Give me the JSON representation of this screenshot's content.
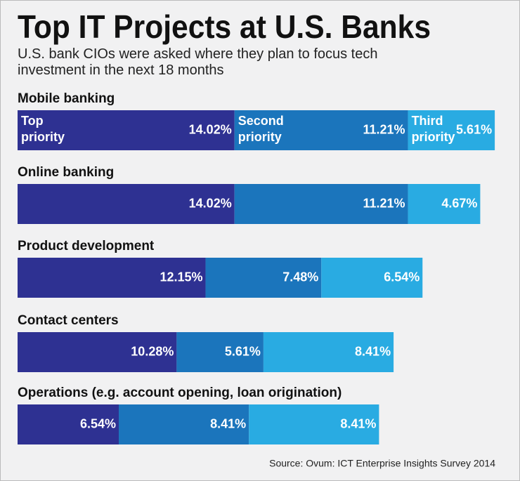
{
  "chart_data": {
    "type": "bar",
    "orientation": "horizontal",
    "stacked": true,
    "title": "Top IT Projects at U.S. Banks",
    "subtitle": "U.S. bank CIOs were asked where they plan to focus tech investment in the next 18 months",
    "source": "Source: Ovum: ICT Enterprise Insights Survey 2014",
    "categories": [
      "Mobile banking",
      "Online banking",
      "Product development",
      "Contact centers",
      "Operations (e.g. account opening, loan origination)"
    ],
    "series": [
      {
        "name": "Top priority",
        "color": "#2e3192",
        "values": [
          14.02,
          14.02,
          12.15,
          10.28,
          6.54
        ],
        "value_labels": [
          "14.02%",
          "14.02%",
          "12.15%",
          "10.28%",
          "6.54%"
        ]
      },
      {
        "name": "Second priority",
        "color": "#1b75bc",
        "values": [
          11.21,
          11.21,
          7.48,
          5.61,
          8.41
        ],
        "value_labels": [
          "11.21%",
          "11.21%",
          "7.48%",
          "5.61%",
          "8.41%"
        ]
      },
      {
        "name": "Third priority",
        "color": "#29abe2",
        "values": [
          5.61,
          4.67,
          6.54,
          8.41,
          8.41
        ],
        "value_labels": [
          "5.61%",
          "4.67%",
          "6.54%",
          "8.41%",
          "8.41%"
        ]
      }
    ]
  }
}
